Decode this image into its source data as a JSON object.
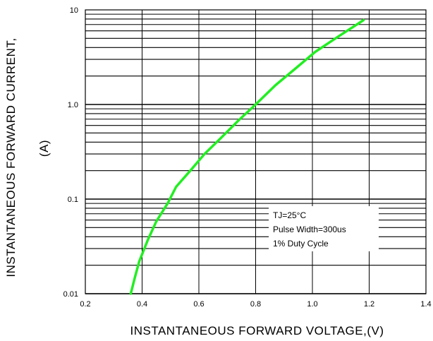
{
  "chart_data": {
    "type": "line",
    "title": "",
    "xlabel": "INSTANTANEOUS FORWARD VOLTAGE,(V)",
    "ylabel_line1": "INSTANTANEOUS FORWARD CURRENT,",
    "ylabel_line2": "(A)",
    "xlim": [
      0.2,
      1.4
    ],
    "ylim": [
      0.01,
      10
    ],
    "yscale": "log",
    "grid": true,
    "x_ticks": [
      "0.2",
      "0.4",
      "0.6",
      "0.8",
      "1.0",
      "1.2",
      "1.4"
    ],
    "x_tick_values": [
      0.2,
      0.4,
      0.6,
      0.8,
      1.0,
      1.2,
      1.4
    ],
    "y_ticks": [
      "0.01",
      "0.1",
      "1.0",
      "10"
    ],
    "y_tick_values": [
      0.01,
      0.1,
      1.0,
      10
    ],
    "series": [
      {
        "color": "#22ee22",
        "x": [
          0.36,
          0.375,
          0.39,
          0.42,
          0.45,
          0.49,
          0.52,
          0.57,
          0.62,
          0.68,
          0.74,
          0.8,
          0.87,
          0.94,
          1.01,
          1.09,
          1.18
        ],
        "y": [
          0.01,
          0.015,
          0.022,
          0.037,
          0.058,
          0.09,
          0.135,
          0.2,
          0.3,
          0.45,
          0.68,
          1.0,
          1.6,
          2.4,
          3.6,
          5.2,
          7.8
        ]
      }
    ],
    "annotation": {
      "lines": [
        "TJ=25°C",
        "Pulse Width=300us",
        "1% Duty Cycle"
      ],
      "placement": "lower-right"
    }
  }
}
